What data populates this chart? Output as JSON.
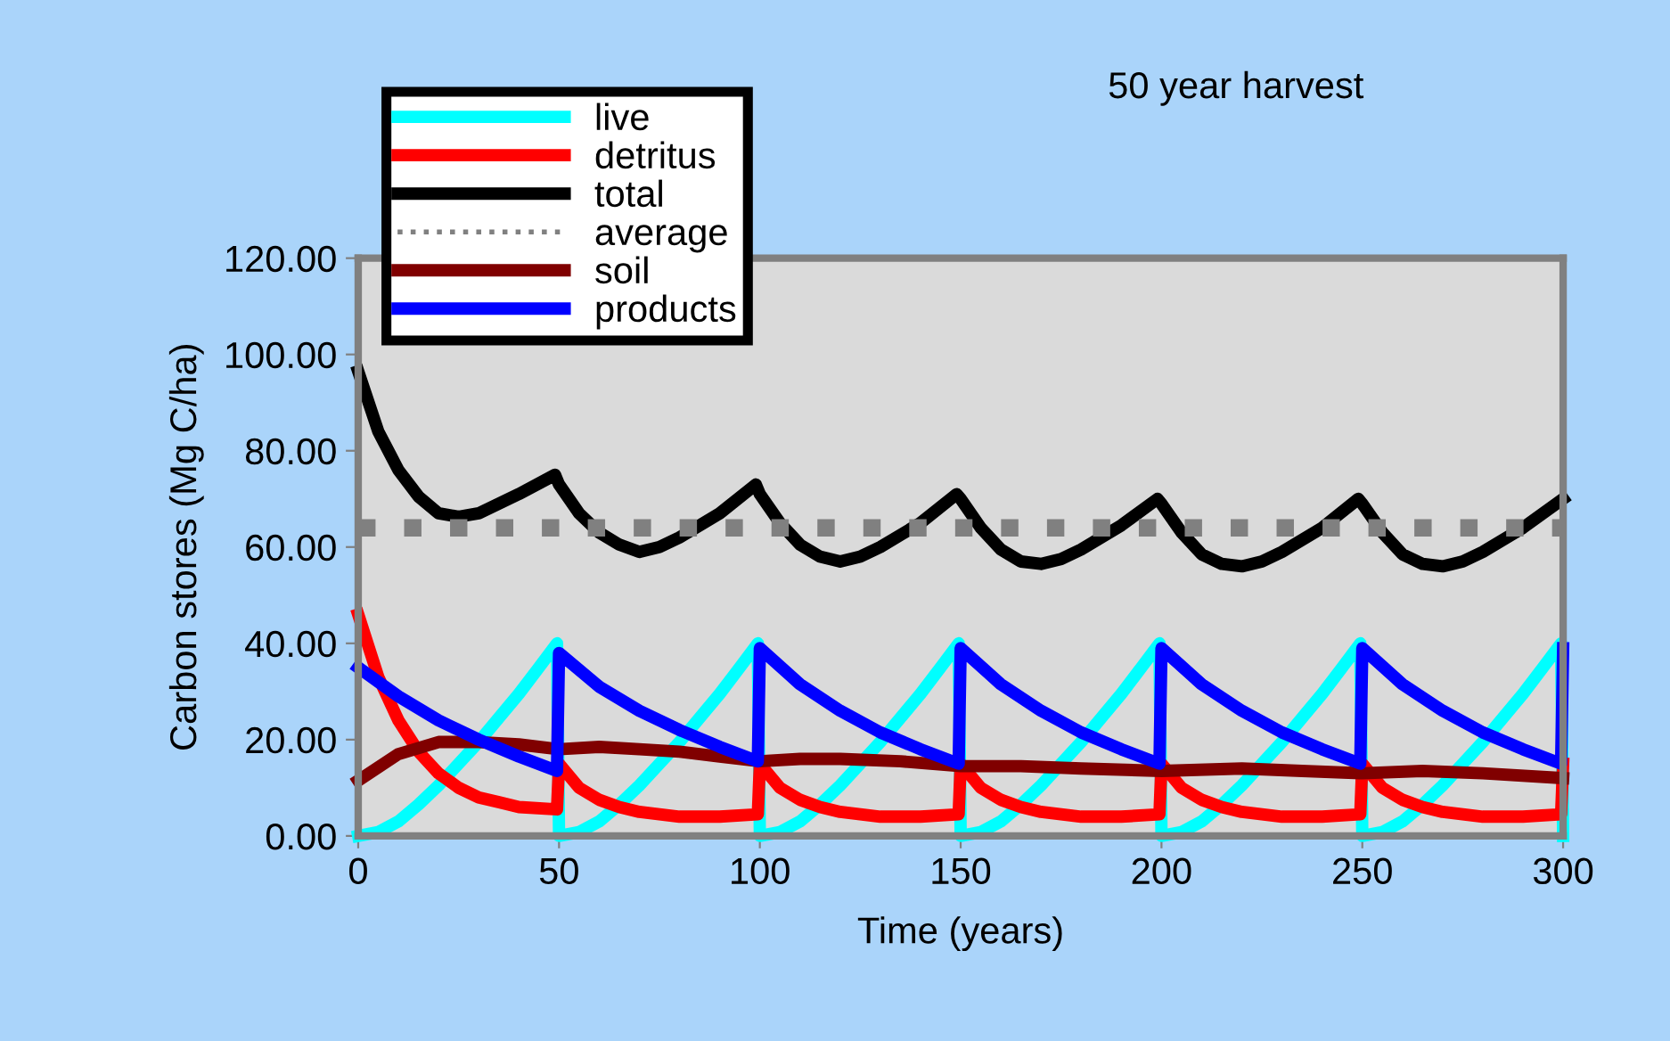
{
  "chart_data": {
    "type": "line",
    "title": "50 year harvest",
    "xlabel": "Time (years)",
    "ylabel": "Carbon stores (Mg C/ha)",
    "xlim": [
      0,
      300
    ],
    "xticks": [
      0,
      50,
      100,
      150,
      200,
      250,
      300
    ],
    "ylim": [
      0,
      120
    ],
    "yticks": [
      {
        "value": 0,
        "label": "0.00"
      },
      {
        "value": 20,
        "label": "20.00"
      },
      {
        "value": 40,
        "label": "40.00"
      },
      {
        "value": 60,
        "label": "60.00"
      },
      {
        "value": 80,
        "label": "80.00"
      },
      {
        "value": 100,
        "label": "100.00"
      },
      {
        "value": 120,
        "label": "120.00"
      }
    ],
    "grid": false,
    "legend": "top left",
    "marker": "none",
    "series": [
      {
        "name": "live",
        "color": "#00ffff",
        "x": [
          0,
          5,
          10,
          15,
          20,
          25,
          30,
          35,
          40,
          45,
          49.5,
          50,
          55,
          60,
          65,
          70,
          75,
          80,
          85,
          90,
          95,
          99.5,
          100,
          105,
          110,
          115,
          120,
          125,
          130,
          135,
          140,
          145,
          149.5,
          150,
          155,
          160,
          165,
          170,
          175,
          180,
          185,
          190,
          195,
          199.5,
          200,
          205,
          210,
          215,
          220,
          225,
          230,
          235,
          240,
          245,
          249.5,
          250,
          255,
          260,
          265,
          270,
          275,
          280,
          285,
          290,
          295,
          299.5,
          300
        ],
        "values": [
          0,
          0.8,
          3,
          6.5,
          10.5,
          15,
          19.5,
          24.5,
          29.5,
          35,
          40,
          0,
          0.8,
          3,
          6.5,
          10.5,
          15,
          19.5,
          24.5,
          29.5,
          35,
          40,
          0,
          0.8,
          3,
          6.5,
          10.5,
          15,
          19.5,
          24.5,
          29.5,
          35,
          40,
          0,
          0.8,
          3,
          6.5,
          10.5,
          15,
          19.5,
          24.5,
          29.5,
          35,
          40,
          0,
          0.8,
          3,
          6.5,
          10.5,
          15,
          19.5,
          24.5,
          29.5,
          35,
          40,
          0,
          0.8,
          3,
          6.5,
          10.5,
          15,
          19.5,
          24.5,
          29.5,
          35,
          40,
          0
        ]
      },
      {
        "name": "detritus",
        "color": "#ff0000",
        "x": [
          0,
          5,
          10,
          15,
          20,
          25,
          30,
          35,
          40,
          49.5,
          50,
          55,
          60,
          65,
          70,
          80,
          90,
          99.5,
          100,
          105,
          110,
          115,
          120,
          130,
          140,
          149.5,
          150,
          155,
          160,
          165,
          170,
          180,
          190,
          199.5,
          200,
          205,
          210,
          215,
          220,
          230,
          240,
          249.5,
          250,
          255,
          260,
          265,
          270,
          280,
          290,
          299.5,
          300
        ],
        "values": [
          46,
          33,
          24,
          17.5,
          13,
          10,
          8,
          7,
          6,
          5.5,
          15,
          10,
          7.5,
          6,
          5,
          4,
          4,
          4.5,
          15,
          10,
          7.5,
          6,
          5,
          4,
          4,
          4.5,
          15,
          10,
          7.5,
          6,
          5,
          4,
          4,
          4.5,
          15,
          10,
          7.5,
          6,
          5,
          4,
          4,
          4.5,
          15,
          10,
          7.5,
          6,
          5,
          4,
          4,
          4.5,
          15
        ]
      },
      {
        "name": "total",
        "color": "#000000",
        "x": [
          0,
          5,
          10,
          15,
          20,
          25,
          30,
          40,
          49,
          50,
          55,
          60,
          65,
          70,
          75,
          80,
          90,
          99,
          100,
          105,
          110,
          115,
          120,
          125,
          130,
          140,
          149,
          150,
          155,
          160,
          165,
          170,
          175,
          180,
          190,
          199,
          200,
          205,
          210,
          215,
          220,
          225,
          230,
          240,
          249,
          250,
          255,
          260,
          265,
          270,
          275,
          280,
          290,
          300
        ],
        "values": [
          96.5,
          84,
          76,
          70.5,
          67,
          66.3,
          67,
          71,
          75,
          73,
          67,
          63,
          60.5,
          59,
          60,
          62,
          67,
          73,
          71,
          65,
          60.5,
          58,
          57,
          58,
          60,
          65,
          71,
          70,
          64,
          59.5,
          57,
          56.5,
          57.5,
          59.5,
          64.5,
          70,
          69,
          63,
          58.5,
          56.5,
          56,
          57,
          59,
          64,
          70,
          69,
          63,
          58.5,
          56.5,
          56,
          57,
          59,
          64,
          70
        ]
      },
      {
        "name": "average",
        "color": "#808080",
        "line_style": "dotted",
        "x": [
          0,
          300
        ],
        "values": [
          64,
          64
        ]
      },
      {
        "name": "soil",
        "color": "#800000",
        "x": [
          0,
          10,
          20,
          30,
          40,
          50,
          60,
          70,
          80,
          90,
          100,
          110,
          120,
          135,
          150,
          165,
          180,
          200,
          220,
          235,
          250,
          265,
          280,
          300
        ],
        "values": [
          11.5,
          17,
          19.5,
          19.5,
          19,
          18,
          18.5,
          18,
          17.5,
          16.5,
          15.5,
          16,
          16,
          15.5,
          14.5,
          14.5,
          14,
          13.5,
          14,
          13.5,
          13,
          13.5,
          13,
          12
        ]
      },
      {
        "name": "products",
        "color": "#0000ff",
        "x": [
          0,
          10,
          20,
          30,
          40,
          49.5,
          50,
          60,
          70,
          80,
          90,
          99.5,
          100,
          110,
          120,
          130,
          140,
          149.5,
          150,
          160,
          170,
          180,
          190,
          199.5,
          200,
          210,
          220,
          230,
          240,
          249.5,
          250,
          260,
          270,
          280,
          290,
          299.5,
          300
        ],
        "values": [
          35,
          29,
          24,
          20,
          16.5,
          13.5,
          38,
          31,
          26,
          22,
          18.5,
          15.5,
          39,
          31.5,
          26,
          21.5,
          18,
          15,
          39,
          31.5,
          26,
          21.5,
          18,
          15,
          39,
          31.5,
          26,
          21.5,
          18,
          15,
          39,
          31.5,
          26,
          21.5,
          18,
          15,
          39
        ]
      }
    ]
  }
}
